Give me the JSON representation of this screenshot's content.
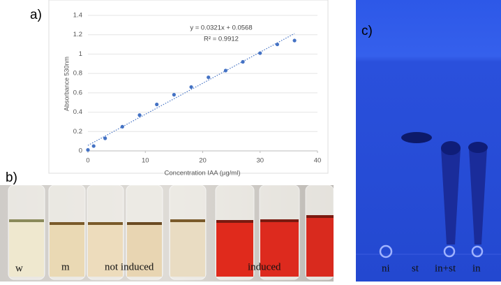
{
  "chart_data": {
    "type": "scatter",
    "panel_label": "a)",
    "x_label": "Concentration IAA (µg/ml)",
    "y_label": "Absorbance 530nm",
    "x": [
      0,
      1,
      3,
      6,
      9,
      12,
      15,
      18,
      21,
      24,
      27,
      30,
      33,
      36
    ],
    "series": [
      {
        "color": "#4472c4",
        "values": [
          0.01,
          0.05,
          0.13,
          0.25,
          0.37,
          0.48,
          0.58,
          0.66,
          0.76,
          0.83,
          0.92,
          1.01,
          1.1,
          1.14
        ]
      }
    ],
    "trendline": {
      "slope": 0.0321,
      "intercept": 0.0568,
      "equation": "y = 0.0321x + 0.0568",
      "r2": "R² = 0.9912"
    },
    "xlim": [
      0,
      40
    ],
    "xticks": [
      0,
      10,
      20,
      30,
      40
    ],
    "ylim": [
      0,
      1.4
    ],
    "yticks": [
      0,
      0.2,
      0.4,
      0.6,
      0.8,
      1,
      1.2,
      1.4
    ],
    "grid": true
  },
  "photo_b": {
    "panel_label": "b)",
    "labels": [
      "w",
      "m",
      "not induced",
      "induced"
    ]
  },
  "photo_c": {
    "panel_label": "c)",
    "labels": [
      "ni",
      "st",
      "in+st",
      "in"
    ]
  }
}
